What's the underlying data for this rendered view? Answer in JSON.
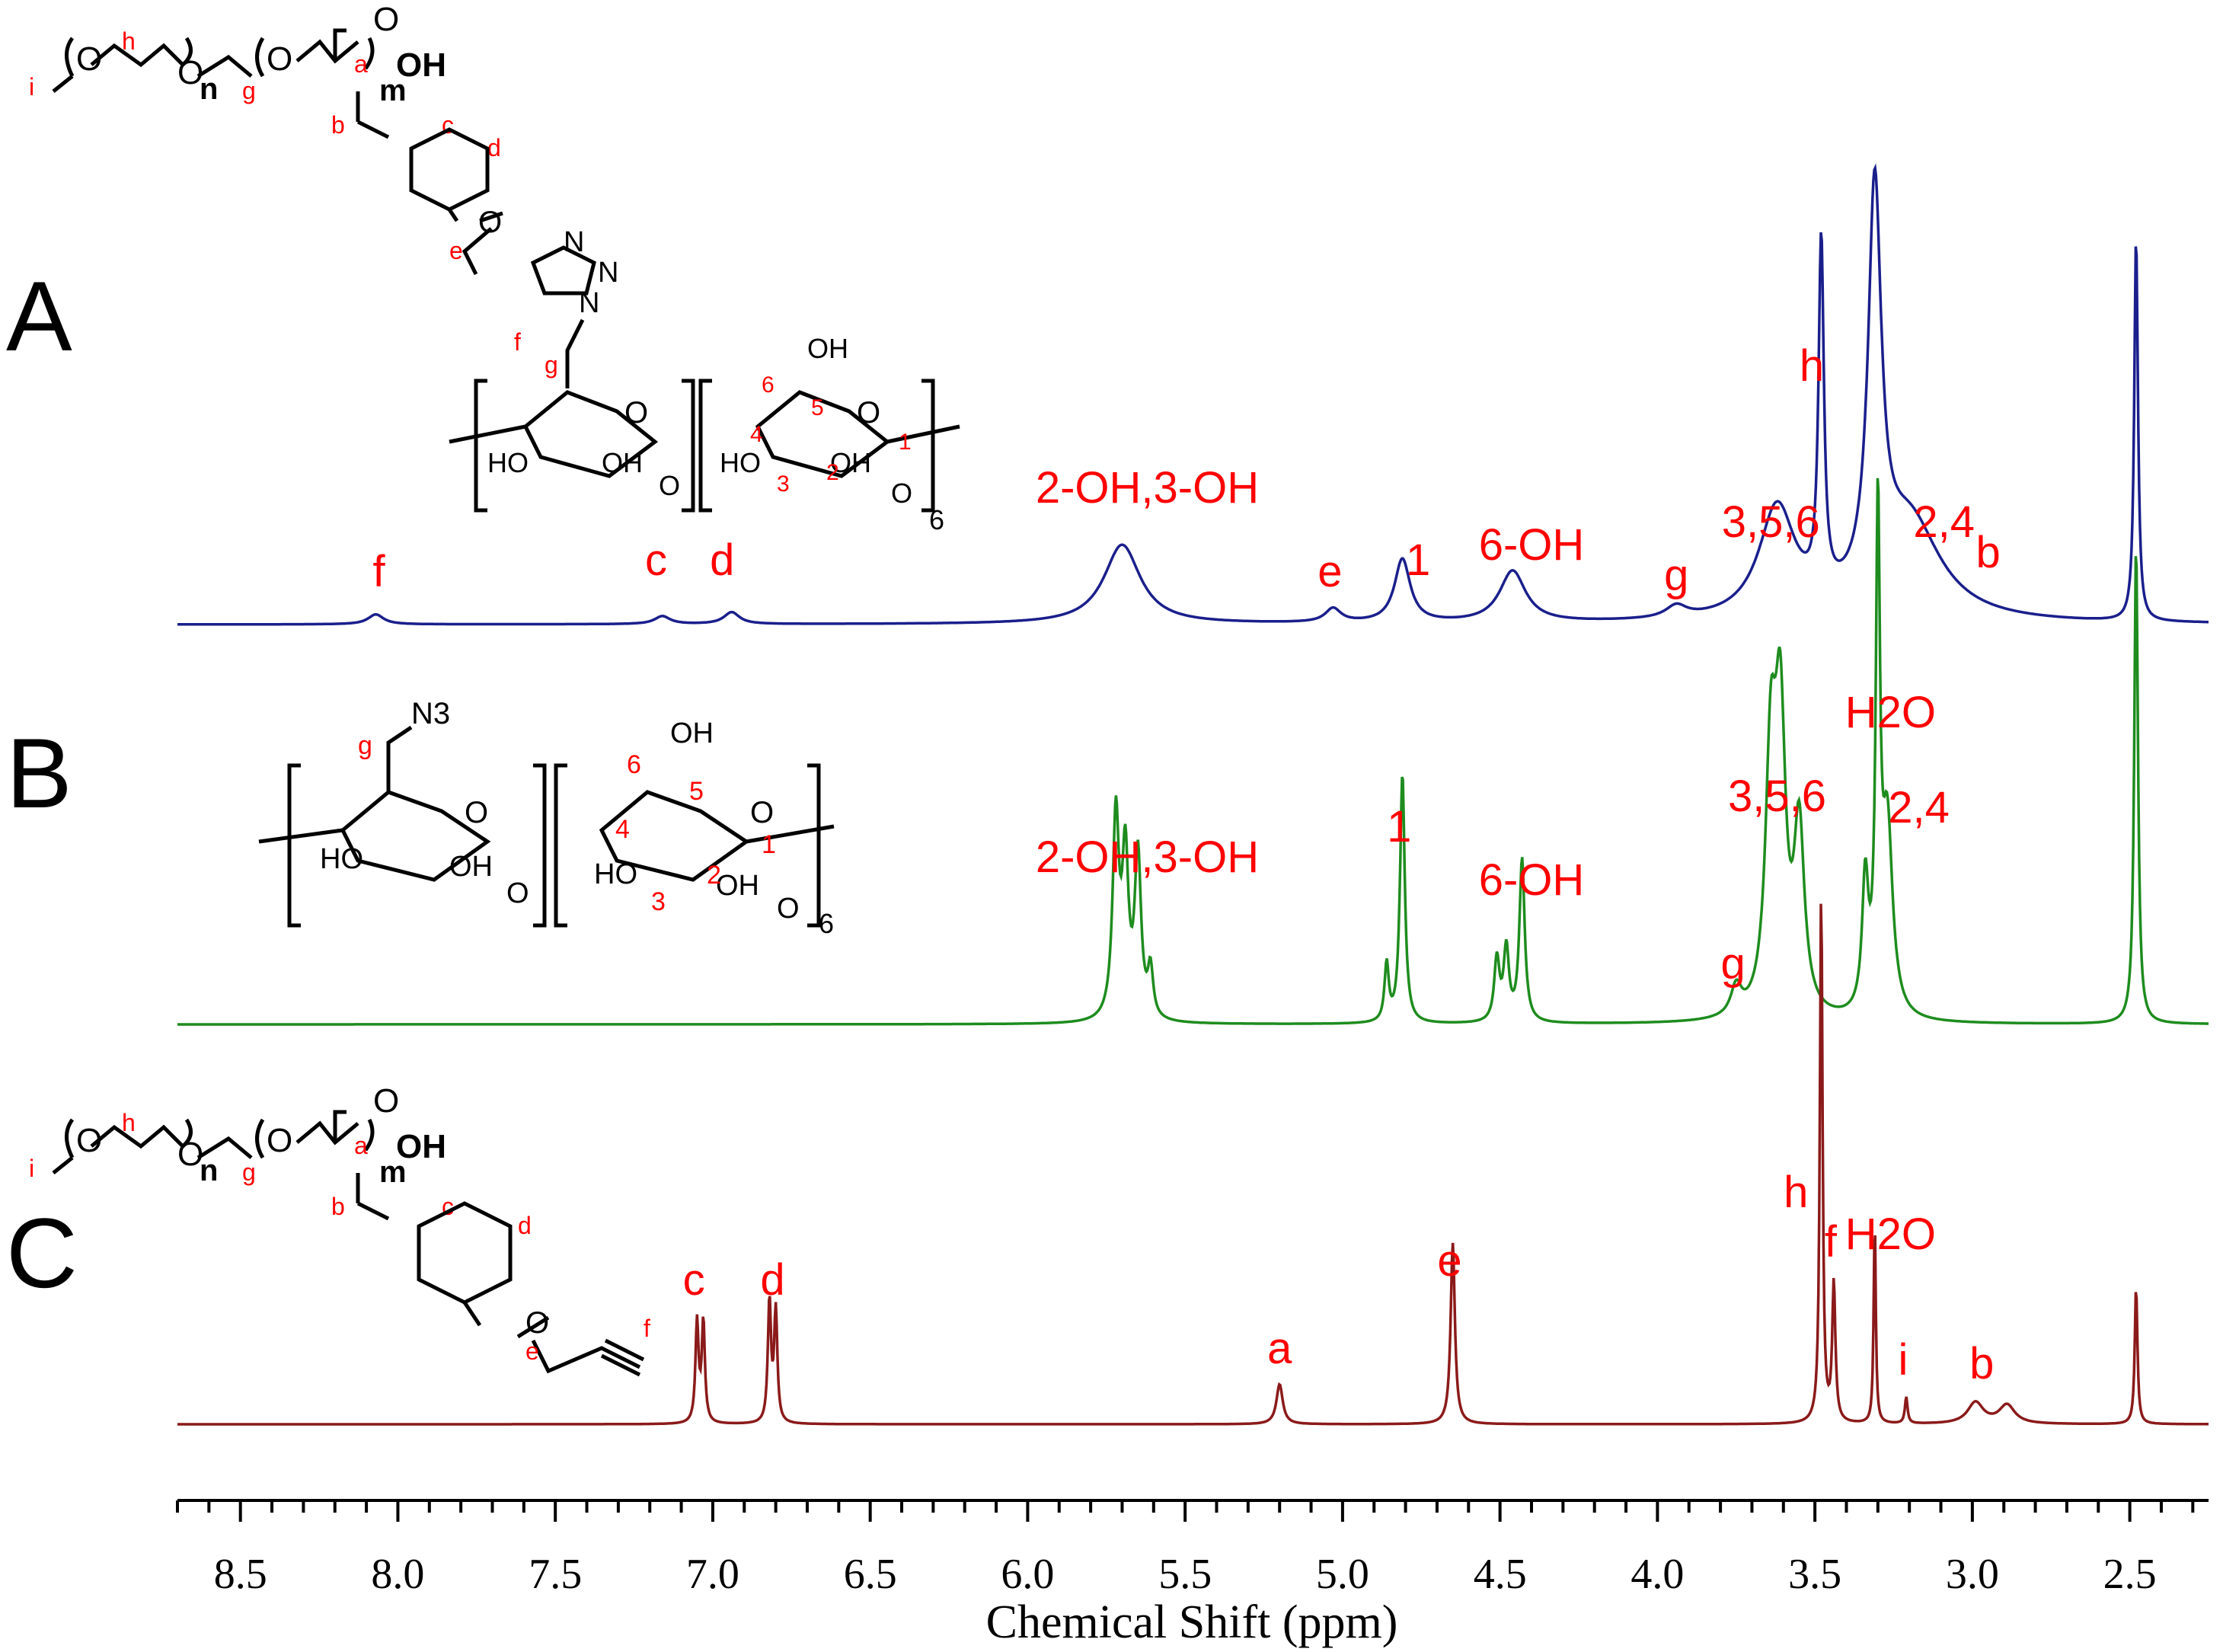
{
  "chart_data": {
    "type": "line",
    "xlabel": "Chemical Shift (ppm)",
    "ylabel": "",
    "xlim": [
      8.7,
      2.25
    ],
    "x_reversed": true,
    "ticks": [
      "8.5",
      "8.0",
      "7.5",
      "7.0",
      "6.5",
      "6.0",
      "5.5",
      "5.0",
      "4.5",
      "4.0",
      "3.5",
      "3.0",
      "2.5"
    ],
    "series": [
      {
        "name": "A",
        "color": "#1a1f8c",
        "peaks": [
          {
            "x": 8.07,
            "h": 0.025,
            "w": 0.03
          },
          {
            "x": 7.16,
            "h": 0.02,
            "w": 0.03
          },
          {
            "x": 6.94,
            "h": 0.03,
            "w": 0.03
          },
          {
            "x": 5.7,
            "h": 0.2,
            "w": 0.07
          },
          {
            "x": 5.03,
            "h": 0.035,
            "w": 0.03
          },
          {
            "x": 4.81,
            "h": 0.16,
            "w": 0.03
          },
          {
            "x": 4.46,
            "h": 0.13,
            "w": 0.05
          },
          {
            "x": 3.94,
            "h": 0.03,
            "w": 0.04
          },
          {
            "x": 3.62,
            "h": 0.28,
            "w": 0.07
          },
          {
            "x": 3.48,
            "h": 0.88,
            "w": 0.01
          },
          {
            "x": 3.31,
            "h": 1.0,
            "w": 0.025
          },
          {
            "x": 3.2,
            "h": 0.25,
            "w": 0.12
          },
          {
            "x": 2.48,
            "h": 0.97,
            "w": 0.007
          }
        ],
        "labels": [
          {
            "text": "f",
            "x": 8.06
          },
          {
            "text": "c",
            "x": 7.18
          },
          {
            "text": "d",
            "x": 6.97
          },
          {
            "text": "2-OH,3-OH",
            "x": 5.62
          },
          {
            "text": "e",
            "x": 5.04
          },
          {
            "text": "1",
            "x": 4.76
          },
          {
            "text": "6-OH",
            "x": 4.4
          },
          {
            "text": "g",
            "x": 3.94
          },
          {
            "text": "3,5,6",
            "x": 3.64
          },
          {
            "text": "h",
            "x": 3.51
          },
          {
            "text": "2,4",
            "x": 3.09
          },
          {
            "text": "b",
            "x": 2.95
          }
        ]
      },
      {
        "name": "B",
        "color": "#1e8c1e",
        "peaks": [
          {
            "x": 5.72,
            "h": 0.42,
            "w": 0.012
          },
          {
            "x": 5.69,
            "h": 0.33,
            "w": 0.012
          },
          {
            "x": 5.65,
            "h": 0.34,
            "w": 0.012
          },
          {
            "x": 5.61,
            "h": 0.1,
            "w": 0.01
          },
          {
            "x": 4.86,
            "h": 0.12,
            "w": 0.008
          },
          {
            "x": 4.81,
            "h": 0.52,
            "w": 0.009
          },
          {
            "x": 4.51,
            "h": 0.13,
            "w": 0.01
          },
          {
            "x": 4.48,
            "h": 0.15,
            "w": 0.01
          },
          {
            "x": 4.43,
            "h": 0.34,
            "w": 0.01
          },
          {
            "x": 3.75,
            "h": 0.06,
            "w": 0.02
          },
          {
            "x": 3.64,
            "h": 0.51,
            "w": 0.02
          },
          {
            "x": 3.61,
            "h": 0.58,
            "w": 0.02
          },
          {
            "x": 3.55,
            "h": 0.38,
            "w": 0.02
          },
          {
            "x": 3.34,
            "h": 0.27,
            "w": 0.012
          },
          {
            "x": 3.3,
            "h": 1.0,
            "w": 0.008
          },
          {
            "x": 3.27,
            "h": 0.4,
            "w": 0.02
          },
          {
            "x": 2.48,
            "h": 1.0,
            "w": 0.007
          }
        ],
        "labels": [
          {
            "text": "2-OH,3-OH",
            "x": 5.62
          },
          {
            "text": "1",
            "x": 4.82
          },
          {
            "text": "6-OH",
            "x": 4.4
          },
          {
            "text": "g",
            "x": 3.76
          },
          {
            "text": "3,5,6",
            "x": 3.62
          },
          {
            "text": "H2O",
            "x": 3.26
          },
          {
            "text": "2,4",
            "x": 3.17
          }
        ]
      },
      {
        "name": "C",
        "color": "#8b1a1a",
        "peaks": [
          {
            "x": 7.05,
            "h": 0.19,
            "w": 0.006
          },
          {
            "x": 7.03,
            "h": 0.19,
            "w": 0.006
          },
          {
            "x": 6.82,
            "h": 0.23,
            "w": 0.006
          },
          {
            "x": 6.8,
            "h": 0.21,
            "w": 0.006
          },
          {
            "x": 5.2,
            "h": 0.075,
            "w": 0.012
          },
          {
            "x": 4.65,
            "h": 0.34,
            "w": 0.008
          },
          {
            "x": 3.48,
            "h": 1.0,
            "w": 0.005
          },
          {
            "x": 3.44,
            "h": 0.26,
            "w": 0.006
          },
          {
            "x": 3.31,
            "h": 0.38,
            "w": 0.004
          },
          {
            "x": 3.21,
            "h": 0.05,
            "w": 0.005
          },
          {
            "x": 2.99,
            "h": 0.04,
            "w": 0.03
          },
          {
            "x": 2.89,
            "h": 0.035,
            "w": 0.03
          },
          {
            "x": 2.48,
            "h": 0.26,
            "w": 0.005
          }
        ],
        "labels": [
          {
            "text": "c",
            "x": 7.06
          },
          {
            "text": "d",
            "x": 6.81
          },
          {
            "text": "a",
            "x": 5.2
          },
          {
            "text": "e",
            "x": 4.66
          },
          {
            "text": "h",
            "x": 3.56
          },
          {
            "text": "f",
            "x": 3.45
          },
          {
            "text": "H2O",
            "x": 3.26
          },
          {
            "text": "i",
            "x": 3.22
          },
          {
            "text": "b",
            "x": 2.97
          }
        ]
      }
    ]
  },
  "panels": [
    "A",
    "B",
    "C"
  ],
  "structures": {
    "polymer": {
      "i": "i",
      "h": "h",
      "n": "n",
      "g": "g",
      "m": "m",
      "a": "a",
      "oh": "OH",
      "b": "b",
      "c": "c",
      "d": "d",
      "e": "e",
      "f": "f",
      "o": "O"
    },
    "triazole": {
      "n": "N",
      "f": "f",
      "g": "g"
    },
    "azide": "N3",
    "sugar": {
      "ho": "HO",
      "oh": "OH",
      "o": "O",
      "sub6": "6",
      "pos1": "1",
      "pos2": "2",
      "pos3": "3",
      "pos4": "4",
      "pos5": "5",
      "pos6": "6",
      "g": "g"
    }
  }
}
